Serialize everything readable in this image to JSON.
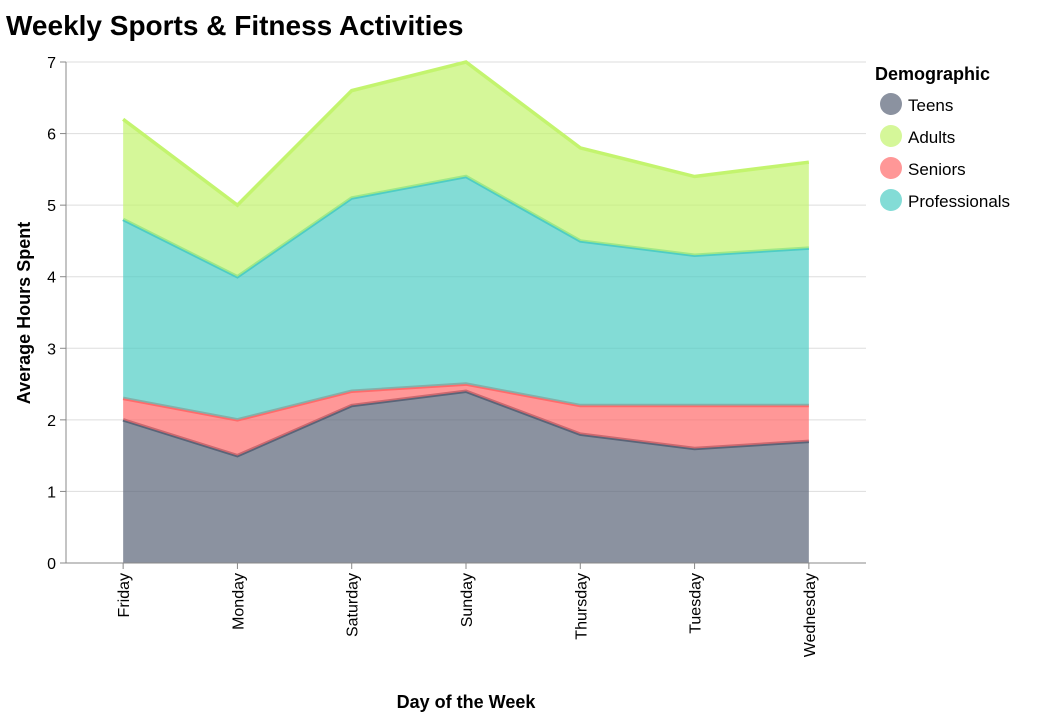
{
  "chart_data": {
    "type": "area",
    "stacked": true,
    "title": "Weekly Sports & Fitness Activities",
    "xlabel": "Day of the Week",
    "ylabel": "Average Hours Spent",
    "ylim": [
      0,
      7
    ],
    "yticks": [
      "0",
      "1",
      "2",
      "3",
      "4",
      "5",
      "6",
      "7"
    ],
    "grid": true,
    "legend_title": "Demographic",
    "legend_position": "right",
    "categories": [
      "Friday",
      "Monday",
      "Saturday",
      "Sunday",
      "Thursday",
      "Tuesday",
      "Wednesday"
    ],
    "series": [
      {
        "name": "Teens",
        "color": "#5a6478",
        "values": [
          2.0,
          1.5,
          2.2,
          2.4,
          1.8,
          1.6,
          1.7
        ]
      },
      {
        "name": "Seniors",
        "color": "#ff6b6b",
        "values": [
          0.3,
          0.5,
          0.2,
          0.1,
          0.4,
          0.6,
          0.5
        ]
      },
      {
        "name": "Professionals",
        "color": "#4ecdc4",
        "values": [
          2.5,
          2.0,
          2.7,
          2.9,
          2.3,
          2.1,
          2.2
        ]
      },
      {
        "name": "Adults",
        "color": "#c3f46e",
        "values": [
          1.4,
          1.0,
          1.5,
          1.6,
          1.3,
          1.1,
          1.2
        ]
      }
    ],
    "legend_order": [
      "Teens",
      "Adults",
      "Seniors",
      "Professionals"
    ]
  }
}
